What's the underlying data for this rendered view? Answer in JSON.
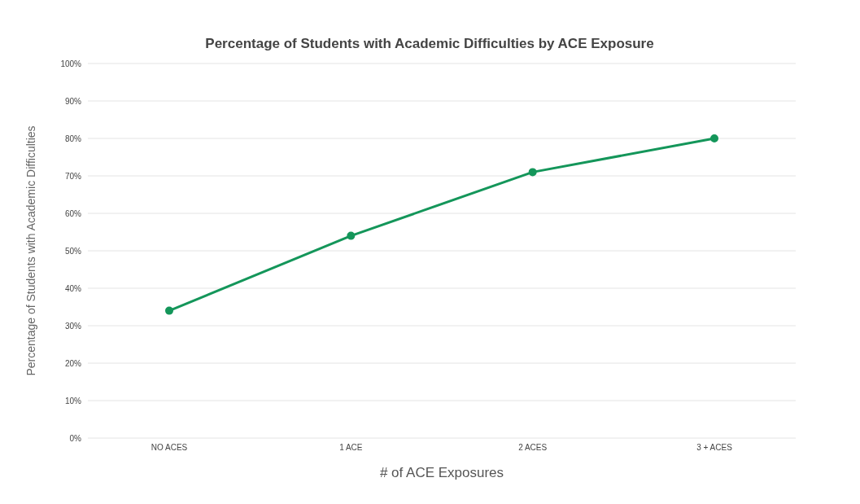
{
  "chart_data": {
    "type": "line",
    "title": "Percentage of Students with Academic Difficulties by ACE Exposure",
    "xlabel": "# of ACE Exposures",
    "ylabel": "Percentage of Students with Academic Difficulties",
    "categories": [
      "NO ACES",
      "1 ACE",
      "2 ACES",
      "3 + ACES"
    ],
    "series": [
      {
        "color": "#14965a",
        "values": [
          34,
          54,
          71,
          80
        ]
      }
    ],
    "ylim": [
      0,
      100
    ],
    "yticks": [
      {
        "value": 0,
        "label": "0%"
      },
      {
        "value": 10,
        "label": "10%"
      },
      {
        "value": 20,
        "label": "20%"
      },
      {
        "value": 30,
        "label": "30%"
      },
      {
        "value": 40,
        "label": "40%"
      },
      {
        "value": 50,
        "label": "50%"
      },
      {
        "value": 60,
        "label": "60%"
      },
      {
        "value": 70,
        "label": "70%"
      },
      {
        "value": 80,
        "label": "80%"
      },
      {
        "value": 90,
        "label": "90%"
      },
      {
        "value": 100,
        "label": "100%"
      }
    ],
    "grid": "y",
    "legend": false,
    "marker": "circle",
    "line_style": "solid"
  }
}
